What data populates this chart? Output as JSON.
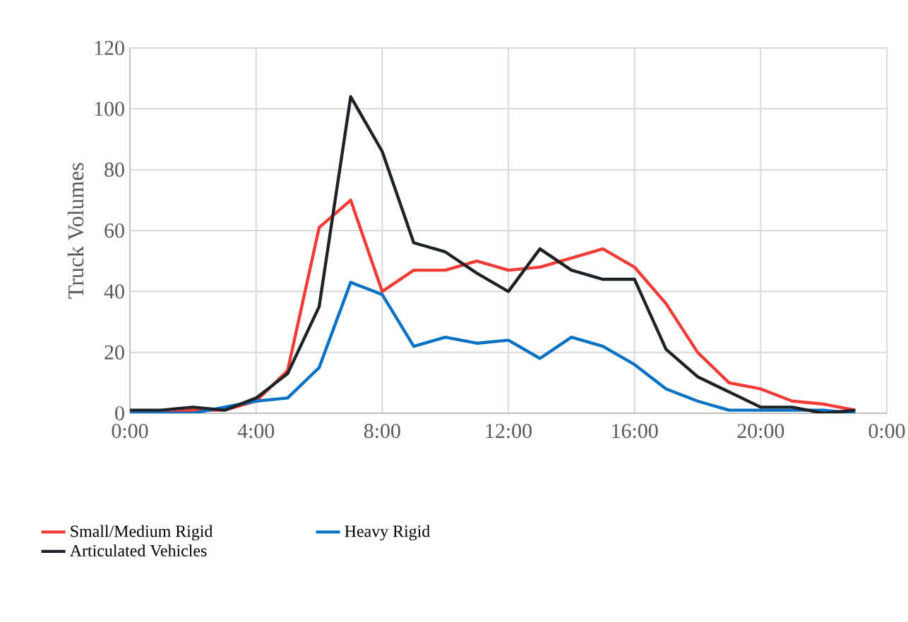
{
  "chart_data": {
    "type": "line",
    "ylabel": "Truck Volumes",
    "x": [
      0,
      1,
      2,
      3,
      4,
      5,
      6,
      7,
      8,
      9,
      10,
      11,
      12,
      13,
      14,
      15,
      16,
      17,
      18,
      19,
      20,
      21,
      22,
      23
    ],
    "series": [
      {
        "name": "Small/Medium Rigid",
        "color": "#f33b36",
        "values": [
          0,
          0,
          1,
          1,
          4,
          14,
          61,
          70,
          40,
          47,
          47,
          50,
          47,
          48,
          51,
          54,
          48,
          36,
          20,
          10,
          8,
          4,
          3,
          1
        ]
      },
      {
        "name": "Heavy Rigid",
        "color": "#0a72c4",
        "values": [
          0,
          0,
          0,
          2,
          4,
          5,
          15,
          43,
          39,
          22,
          25,
          23,
          24,
          18,
          25,
          22,
          16,
          8,
          4,
          1,
          1,
          1,
          1,
          0
        ]
      },
      {
        "name": "Articulated Vehicles",
        "color": "#1d2226",
        "values": [
          1,
          1,
          2,
          1,
          5,
          13,
          35,
          104,
          86,
          56,
          53,
          46,
          40,
          54,
          47,
          44,
          44,
          21,
          12,
          7,
          2,
          2,
          0,
          1
        ]
      }
    ],
    "xlim": [
      0,
      24
    ],
    "xticks": [
      {
        "value": 0,
        "label": "0:00"
      },
      {
        "value": 4,
        "label": "4:00"
      },
      {
        "value": 8,
        "label": "8:00"
      },
      {
        "value": 12,
        "label": "12:00"
      },
      {
        "value": 16,
        "label": "16:00"
      },
      {
        "value": 20,
        "label": "20:00"
      },
      {
        "value": 24,
        "label": "0:00"
      }
    ],
    "ylim": [
      0,
      120
    ],
    "yticks": [
      0,
      20,
      40,
      60,
      80,
      100,
      120
    ],
    "grid": true,
    "legend": "bottom",
    "marker": "none",
    "line_style": "solid"
  }
}
